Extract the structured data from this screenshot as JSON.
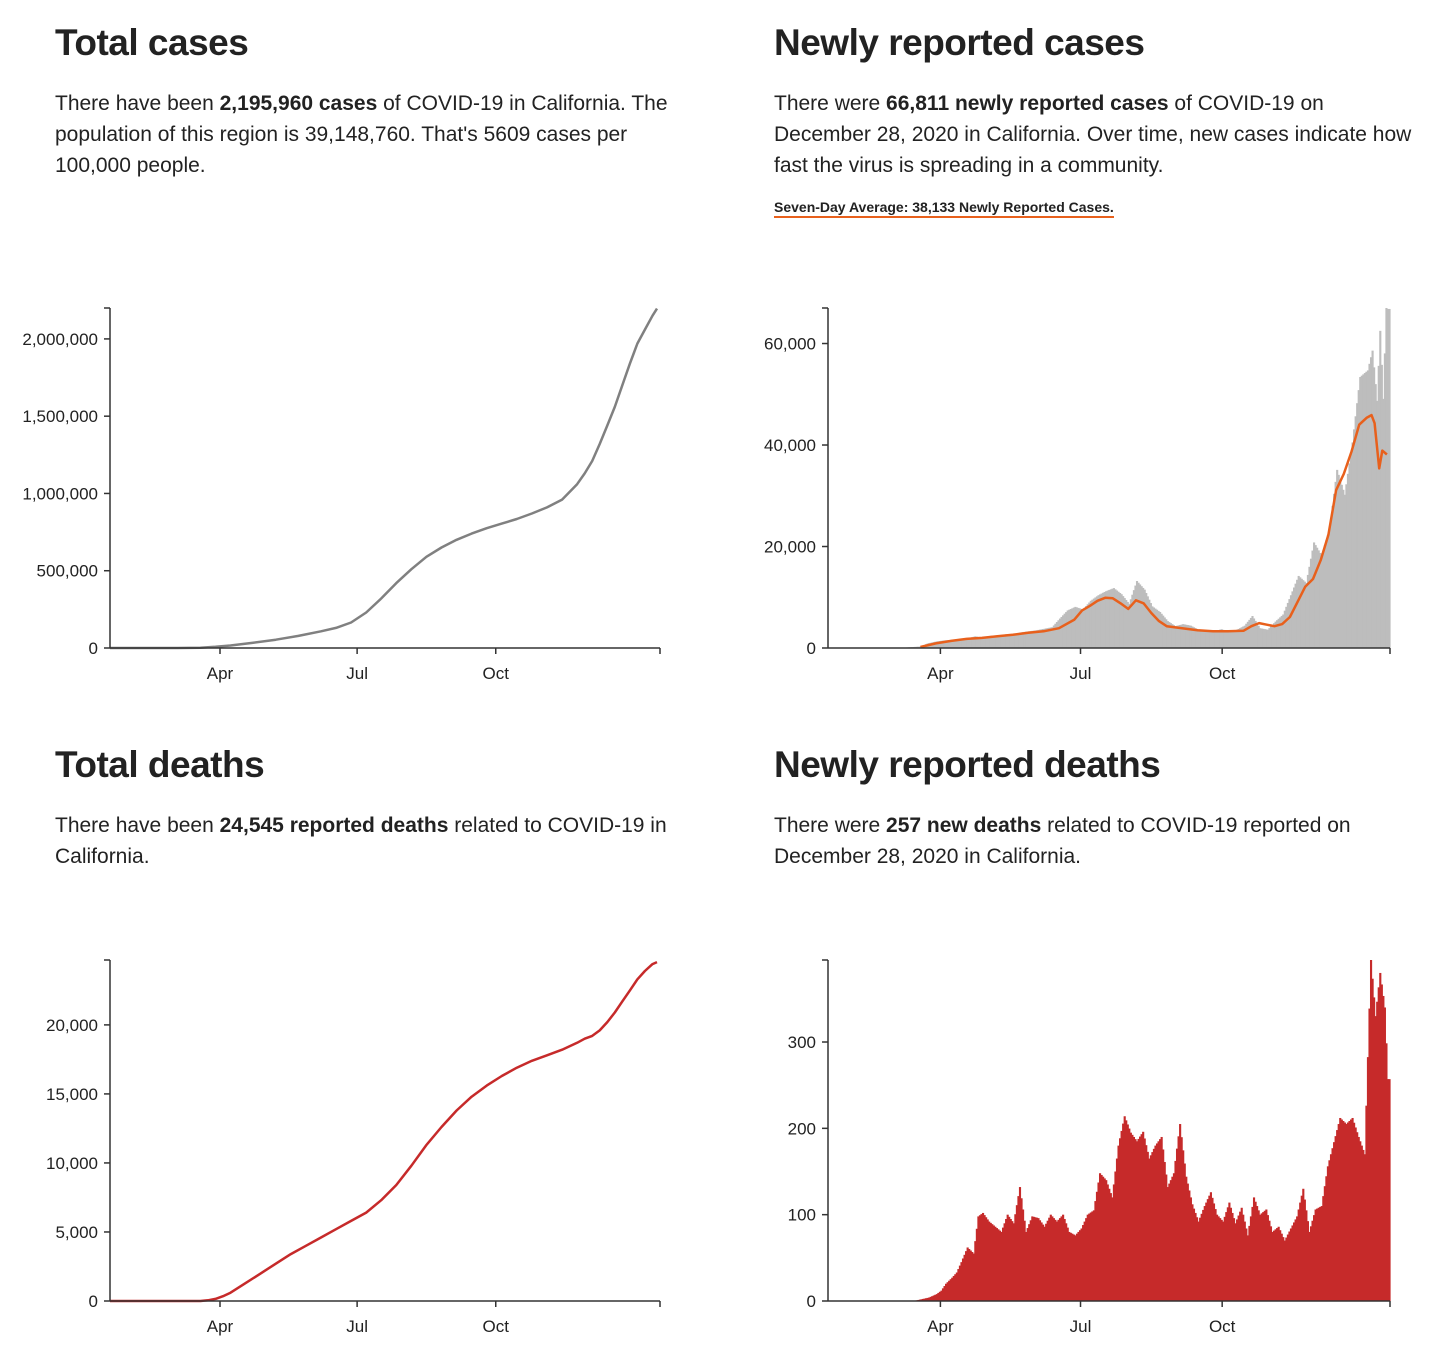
{
  "panels": {
    "total_cases": {
      "title": "Total cases",
      "text": {
        "t1": "There have been ",
        "b1": "2,195,960 cases",
        "t2": " of COVID-19 in California. The population of this region is 39,148,760. That's 5609 cases per 100,000 people."
      }
    },
    "new_cases": {
      "title": "Newly reported cases",
      "text": {
        "t1": "There were ",
        "b1": "66,811 newly reported cases",
        "t2": " of COVID-19 on December 28, 2020 in California. Over time, new cases indicate how fast the virus is spreading in a community."
      },
      "seven_day_label": "Seven-Day Average: 38,133 Newly Reported Cases."
    },
    "total_deaths": {
      "title": "Total deaths",
      "text": {
        "t1": "There have been ",
        "b1": "24,545 reported deaths",
        "t2": " related to COVID-19 in California."
      }
    },
    "new_deaths": {
      "title": "Newly reported deaths",
      "text": {
        "t1": "There were ",
        "b1": "257 new deaths",
        "t2": " related to COVID-19 reported on December 28, 2020 in California."
      }
    }
  },
  "colors": {
    "cases_line": "#808080",
    "bars_gray": "#bdbdbd",
    "avg_orange": "#e8601c",
    "deaths_red": "#c62a2a",
    "axis": "#333333"
  },
  "chart_data": [
    {
      "id": "total_cases",
      "type": "line",
      "title": "Total cases",
      "x_unit": "day",
      "xlim": [
        0,
        365
      ],
      "ylim": [
        0,
        2200000
      ],
      "x_ticks": [
        {
          "x": 73,
          "label": "Apr"
        },
        {
          "x": 164,
          "label": "Jul"
        },
        {
          "x": 256,
          "label": "Oct"
        }
      ],
      "y_ticks": [
        {
          "y": 0,
          "label": "0"
        },
        {
          "y": 500000,
          "label": "500,000"
        },
        {
          "y": 1000000,
          "label": "1,000,000"
        },
        {
          "y": 1500000,
          "label": "1,500,000"
        },
        {
          "y": 2000000,
          "label": "2,000,000"
        }
      ],
      "x": [
        0,
        30,
        45,
        60,
        70,
        80,
        95,
        110,
        125,
        140,
        150,
        160,
        170,
        180,
        190,
        200,
        210,
        220,
        230,
        240,
        250,
        260,
        270,
        280,
        290,
        300,
        310,
        315,
        320,
        325,
        330,
        335,
        340,
        345,
        350,
        355,
        360,
        363
      ],
      "values": [
        0,
        0,
        200,
        2000,
        8000,
        16000,
        34000,
        54000,
        78000,
        108000,
        130000,
        165000,
        230000,
        320000,
        420000,
        510000,
        590000,
        650000,
        700000,
        740000,
        775000,
        805000,
        835000,
        870000,
        910000,
        960000,
        1060000,
        1130000,
        1210000,
        1320000,
        1440000,
        1560000,
        1700000,
        1840000,
        1970000,
        2060000,
        2150000,
        2195960
      ]
    },
    {
      "id": "new_cases",
      "type": "bar",
      "title": "Newly reported cases",
      "x_unit": "day",
      "xlim": [
        0,
        365
      ],
      "ylim": [
        0,
        67000
      ],
      "x_ticks": [
        {
          "x": 73,
          "label": "Apr"
        },
        {
          "x": 164,
          "label": "Jul"
        },
        {
          "x": 256,
          "label": "Oct"
        }
      ],
      "y_ticks": [
        {
          "y": 0,
          "label": "0"
        },
        {
          "y": 20000,
          "label": "20,000"
        },
        {
          "y": 40000,
          "label": "40,000"
        },
        {
          "y": 60000,
          "label": "60,000"
        }
      ],
      "x": [
        0,
        40,
        50,
        60,
        64,
        70,
        75,
        80,
        85,
        90,
        95,
        100,
        105,
        110,
        115,
        120,
        125,
        130,
        135,
        140,
        145,
        150,
        155,
        160,
        165,
        170,
        175,
        180,
        185,
        190,
        195,
        200,
        205,
        210,
        215,
        220,
        225,
        230,
        235,
        240,
        245,
        250,
        255,
        260,
        265,
        270,
        275,
        280,
        285,
        290,
        295,
        300,
        305,
        310,
        315,
        320,
        325,
        330,
        335,
        340,
        345,
        350,
        353,
        356,
        358,
        360,
        362,
        363
      ],
      "values": [
        0,
        0,
        100,
        300,
        900,
        1300,
        1500,
        1600,
        1800,
        1900,
        2300,
        2000,
        2400,
        2500,
        2700,
        2800,
        3100,
        3300,
        3500,
        3800,
        4100,
        5800,
        7400,
        8100,
        7600,
        9300,
        10400,
        11200,
        11800,
        10600,
        8700,
        13200,
        11500,
        8200,
        7100,
        5300,
        4300,
        4700,
        4400,
        3600,
        3400,
        3300,
        3700,
        3100,
        3600,
        4400,
        6300,
        3900,
        3600,
        5200,
        6600,
        10400,
        14200,
        12800,
        20800,
        18200,
        23300,
        35100,
        30200,
        40500,
        53400,
        54700,
        58600,
        48700,
        62500,
        49100,
        67000,
        66811
      ],
      "average": {
        "name": "Seven-Day Average",
        "x": [
          60,
          70,
          80,
          90,
          100,
          110,
          120,
          130,
          140,
          150,
          160,
          165,
          170,
          175,
          180,
          185,
          190,
          195,
          200,
          205,
          210,
          215,
          220,
          230,
          240,
          250,
          260,
          270,
          275,
          280,
          285,
          290,
          295,
          300,
          305,
          310,
          315,
          320,
          325,
          330,
          335,
          340,
          345,
          350,
          353,
          355,
          358,
          360,
          363
        ],
        "values": [
          200,
          900,
          1400,
          1800,
          2000,
          2300,
          2600,
          3000,
          3300,
          3900,
          5600,
          7400,
          8300,
          9300,
          9900,
          9800,
          8800,
          7700,
          9400,
          8800,
          6900,
          5300,
          4300,
          3900,
          3500,
          3300,
          3300,
          3400,
          4300,
          4900,
          4600,
          4300,
          4700,
          6100,
          9100,
          12100,
          13600,
          17300,
          22300,
          31100,
          34300,
          38700,
          44000,
          45400,
          45900,
          44300,
          35400,
          38900,
          38133
        ]
      }
    },
    {
      "id": "total_deaths",
      "type": "line",
      "title": "Total deaths",
      "x_unit": "day",
      "xlim": [
        0,
        365
      ],
      "ylim": [
        0,
        24700
      ],
      "x_ticks": [
        {
          "x": 73,
          "label": "Apr"
        },
        {
          "x": 164,
          "label": "Jul"
        },
        {
          "x": 256,
          "label": "Oct"
        }
      ],
      "y_ticks": [
        {
          "y": 0,
          "label": "0"
        },
        {
          "y": 5000,
          "label": "5,000"
        },
        {
          "y": 10000,
          "label": "10,000"
        },
        {
          "y": 15000,
          "label": "15,000"
        },
        {
          "y": 20000,
          "label": "20,000"
        }
      ],
      "x": [
        0,
        60,
        65,
        70,
        75,
        80,
        90,
        100,
        110,
        120,
        130,
        140,
        150,
        160,
        170,
        180,
        190,
        200,
        210,
        220,
        230,
        240,
        250,
        260,
        270,
        280,
        290,
        300,
        310,
        315,
        320,
        325,
        330,
        335,
        340,
        345,
        350,
        355,
        360,
        363
      ],
      "values": [
        0,
        0,
        50,
        150,
        350,
        600,
        1300,
        2000,
        2700,
        3400,
        4000,
        4600,
        5200,
        5800,
        6400,
        7300,
        8400,
        9800,
        11300,
        12600,
        13800,
        14800,
        15600,
        16300,
        16900,
        17400,
        17800,
        18200,
        18700,
        19000,
        19200,
        19600,
        20200,
        20900,
        21700,
        22500,
        23300,
        23900,
        24400,
        24545
      ]
    },
    {
      "id": "new_deaths",
      "type": "bar",
      "title": "Newly reported deaths",
      "x_unit": "day",
      "xlim": [
        0,
        365
      ],
      "ylim": [
        0,
        395
      ],
      "x_ticks": [
        {
          "x": 73,
          "label": "Apr"
        },
        {
          "x": 164,
          "label": "Jul"
        },
        {
          "x": 256,
          "label": "Oct"
        }
      ],
      "y_ticks": [
        {
          "y": 0,
          "label": "0"
        },
        {
          "y": 100,
          "label": "100"
        },
        {
          "y": 200,
          "label": "200"
        },
        {
          "y": 300,
          "label": "300"
        }
      ],
      "x": [
        0,
        55,
        60,
        65,
        70,
        73,
        76,
        80,
        83,
        86,
        90,
        94,
        97,
        100,
        104,
        108,
        112,
        116,
        120,
        124,
        128,
        132,
        136,
        140,
        144,
        148,
        152,
        156,
        160,
        164,
        168,
        172,
        176,
        180,
        184,
        188,
        192,
        196,
        200,
        204,
        208,
        212,
        216,
        220,
        224,
        228,
        232,
        236,
        240,
        244,
        248,
        252,
        256,
        260,
        264,
        268,
        272,
        276,
        280,
        284,
        288,
        292,
        296,
        300,
        304,
        308,
        312,
        316,
        320,
        324,
        328,
        332,
        336,
        340,
        344,
        348,
        352,
        355,
        358,
        361,
        363
      ],
      "values": [
        0,
        0,
        2,
        4,
        8,
        12,
        20,
        27,
        33,
        45,
        62,
        55,
        98,
        102,
        92,
        86,
        80,
        100,
        90,
        132,
        80,
        98,
        96,
        86,
        100,
        92,
        100,
        80,
        76,
        84,
        100,
        105,
        148,
        140,
        120,
        180,
        214,
        195,
        185,
        196,
        165,
        180,
        190,
        132,
        148,
        205,
        144,
        112,
        92,
        110,
        126,
        100,
        92,
        114,
        90,
        108,
        76,
        120,
        100,
        106,
        80,
        86,
        70,
        84,
        98,
        130,
        80,
        106,
        110,
        156,
        184,
        212,
        205,
        212,
        190,
        170,
        395,
        330,
        380,
        340,
        257
      ]
    }
  ]
}
